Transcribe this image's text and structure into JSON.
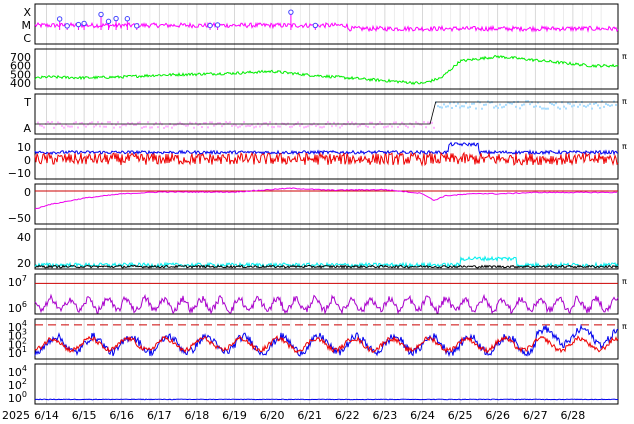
{
  "figure": {
    "panels": [
      {
        "id": "xray-class",
        "type": "line",
        "y_ticks": [
          "X",
          "M",
          "C"
        ],
        "ylim": [
          0,
          3
        ],
        "series": [
          {
            "color": "#ff00ff"
          }
        ],
        "flare_markers": {
          "color": "#4444ff",
          "x": [
            1.35,
            1.55,
            1.85,
            2.0,
            2.45,
            2.65,
            2.85,
            3.15,
            3.4,
            5.35,
            5.55,
            7.5,
            8.15
          ]
        }
      },
      {
        "id": "wind-speed",
        "type": "line",
        "y_ticks": [
          "700",
          "600",
          "500",
          "400"
        ],
        "ylim": [
          350,
          780
        ],
        "right_tag": "π",
        "series": [
          {
            "color": "#00ee00"
          }
        ]
      },
      {
        "id": "imf-sector",
        "type": "scatter",
        "y_ticks": [
          "T",
          "A"
        ],
        "ylim": [
          0,
          1
        ],
        "right_tag": "π",
        "series": [
          {
            "color": "#ffb3ff"
          },
          {
            "color": "#aaddff"
          },
          {
            "color": "#000000"
          }
        ]
      },
      {
        "id": "imf-bt-bz",
        "type": "line",
        "y_ticks": [
          "10",
          "0",
          "−10"
        ],
        "ylim": [
          -15,
          15
        ],
        "right_tag": "π",
        "series": [
          {
            "color": "#0000ee"
          },
          {
            "color": "#ee0000"
          }
        ]
      },
      {
        "id": "dst",
        "type": "line",
        "y_ticks": [
          "0",
          "−50"
        ],
        "ylim": [
          -70,
          15
        ],
        "series": [
          {
            "color": "#ee00ee"
          }
        ],
        "reference_line": {
          "y": 0,
          "color": "#cc0000"
        }
      },
      {
        "id": "density",
        "type": "line",
        "y_ticks": [
          "40",
          "20"
        ],
        "ylim": [
          0,
          50
        ],
        "series": [
          {
            "color": "#00eeee"
          }
        ]
      },
      {
        "id": "electron-flux",
        "type": "line",
        "y_ticks": [
          "10^7",
          "10^6"
        ],
        "ylim": [
          5.7,
          7.4
        ],
        "scale": "log",
        "right_tag": "π",
        "series": [
          {
            "color": "#aa00cc"
          }
        ],
        "reference_line": {
          "y": 7,
          "color": "#cc0000"
        }
      },
      {
        "id": "proton-flux",
        "type": "line",
        "y_ticks": [
          "10^4",
          "10^3",
          "10^2",
          "10^1"
        ],
        "ylim": [
          0.5,
          4.6
        ],
        "scale": "log",
        "right_tag": "π",
        "series": [
          {
            "color": "#0000ee"
          },
          {
            "color": "#ee0000"
          }
        ],
        "reference_line": {
          "y": 4,
          "color": "#cc0000",
          "style": "dashed"
        }
      },
      {
        "id": "high-energy-flux",
        "type": "line",
        "y_ticks": [
          "10^4",
          "10^2",
          "10^0"
        ],
        "ylim": [
          -0.6,
          4.6
        ],
        "scale": "log",
        "series": [
          {
            "color": "#0000ee"
          }
        ]
      }
    ],
    "x_axis": {
      "year_label": "2025",
      "labels": [
        "6/14",
        "6/15",
        "6/16",
        "6/17",
        "6/18",
        "6/19",
        "6/20",
        "6/21",
        "6/22",
        "6/23",
        "6/24",
        "6/25",
        "6/26",
        "6/27",
        "6/28"
      ],
      "xlim": [
        "2025-06-13T06:00",
        "2025-06-28T18:00"
      ]
    }
  },
  "chart_data": [
    {
      "type": "line",
      "y_ticks": [
        "X",
        "M",
        "C"
      ],
      "series_color": "#ff00ff",
      "flare_times": [
        1.35,
        1.55,
        1.85,
        2.0,
        2.45,
        2.65,
        2.85,
        3.15,
        3.4,
        5.35,
        5.55,
        7.5,
        8.15
      ]
    },
    {
      "type": "line",
      "y_ticks": [
        "700",
        "600",
        "500",
        "400"
      ],
      "ylim": [
        350,
        780
      ],
      "x": [
        0,
        1,
        2,
        3,
        4,
        5,
        6,
        7,
        8,
        9,
        10,
        11,
        11.5,
        12,
        13,
        14,
        15.5
      ],
      "y": [
        430,
        480,
        470,
        480,
        500,
        510,
        520,
        540,
        500,
        470,
        440,
        410,
        470,
        650,
        700,
        660,
        600
      ]
    },
    {
      "type": "scatter",
      "y_ticks": [
        "T",
        "A"
      ]
    },
    {
      "type": "line",
      "y_ticks": [
        "10",
        "0",
        "−10"
      ],
      "ylim": [
        -15,
        15
      ]
    },
    {
      "type": "line",
      "y_ticks": [
        "0",
        "−50"
      ],
      "ylim": [
        -70,
        15
      ],
      "x": [
        0,
        0.3,
        1,
        2,
        3,
        4,
        6,
        7.5,
        8.5,
        10,
        11,
        11.3,
        11.6,
        12.5,
        13,
        14,
        15.5
      ],
      "y": [
        -55,
        -50,
        -30,
        -15,
        -6,
        -2,
        -2,
        6,
        2,
        3,
        -5,
        -20,
        -10,
        -5,
        -6,
        -3,
        -3
      ]
    },
    {
      "type": "line",
      "y_ticks": [
        "40",
        "20"
      ],
      "ylim": [
        0,
        50
      ]
    },
    {
      "type": "line",
      "y_ticks": [
        "10^7",
        "10^6"
      ],
      "scale": "log"
    },
    {
      "type": "line",
      "y_ticks": [
        "10^4",
        "10^3",
        "10^2",
        "10^1"
      ],
      "scale": "log"
    },
    {
      "type": "line",
      "y_ticks": [
        "10^4",
        "10^2",
        "10^0"
      ],
      "scale": "log"
    }
  ]
}
